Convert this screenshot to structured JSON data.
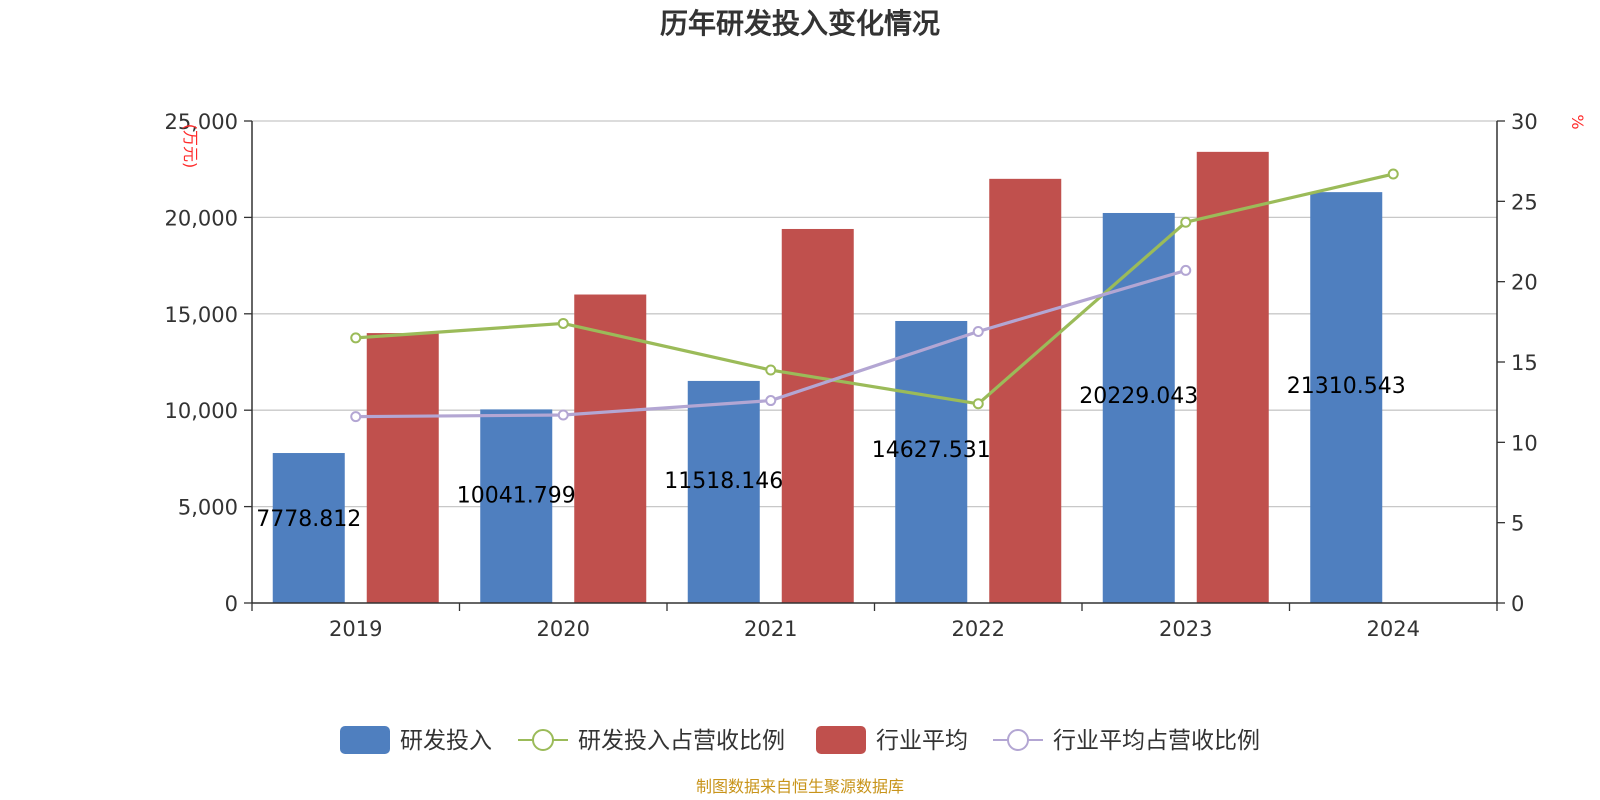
{
  "chart_data": {
    "type": "bar",
    "title": "历年研发投入变化情况",
    "categories": [
      "2019",
      "2020",
      "2021",
      "2022",
      "2023",
      "2024"
    ],
    "y_left": {
      "unit": "(万元)",
      "ylim": [
        0,
        25000
      ],
      "ticks": [
        "0",
        "5,000",
        "10,000",
        "15,000",
        "20,000",
        "25,000"
      ]
    },
    "y_right": {
      "unit": "%",
      "ylim": [
        0,
        30
      ],
      "ticks": [
        "0",
        "5",
        "10",
        "15",
        "20",
        "25",
        "30"
      ]
    },
    "series": [
      {
        "name": "研发投入",
        "type": "bar",
        "axis": "left",
        "color": "#4f7fbf",
        "values": [
          7778.812,
          10041.799,
          11518.146,
          14627.531,
          20229.043,
          21310.543
        ],
        "labels": [
          "7778.812",
          "10041.799",
          "11518.146",
          "14627.531",
          "20229.043",
          "21310.543"
        ]
      },
      {
        "name": "研发投入占营收比例",
        "type": "line",
        "axis": "right",
        "color": "#9bbb59",
        "values": [
          16.5,
          17.4,
          14.5,
          12.4,
          23.7,
          26.7
        ]
      },
      {
        "name": "行业平均",
        "type": "bar",
        "axis": "left",
        "color": "#c0504d",
        "values": [
          14000,
          16000,
          19400,
          22000,
          23400,
          null
        ]
      },
      {
        "name": "行业平均占营收比例",
        "type": "line",
        "axis": "right",
        "color": "#b3a6d3",
        "values": [
          11.6,
          11.7,
          12.6,
          16.9,
          20.7,
          null
        ]
      }
    ],
    "grid": true,
    "legend_position": "bottom"
  },
  "source": "制图数据来自恒生聚源数据库"
}
